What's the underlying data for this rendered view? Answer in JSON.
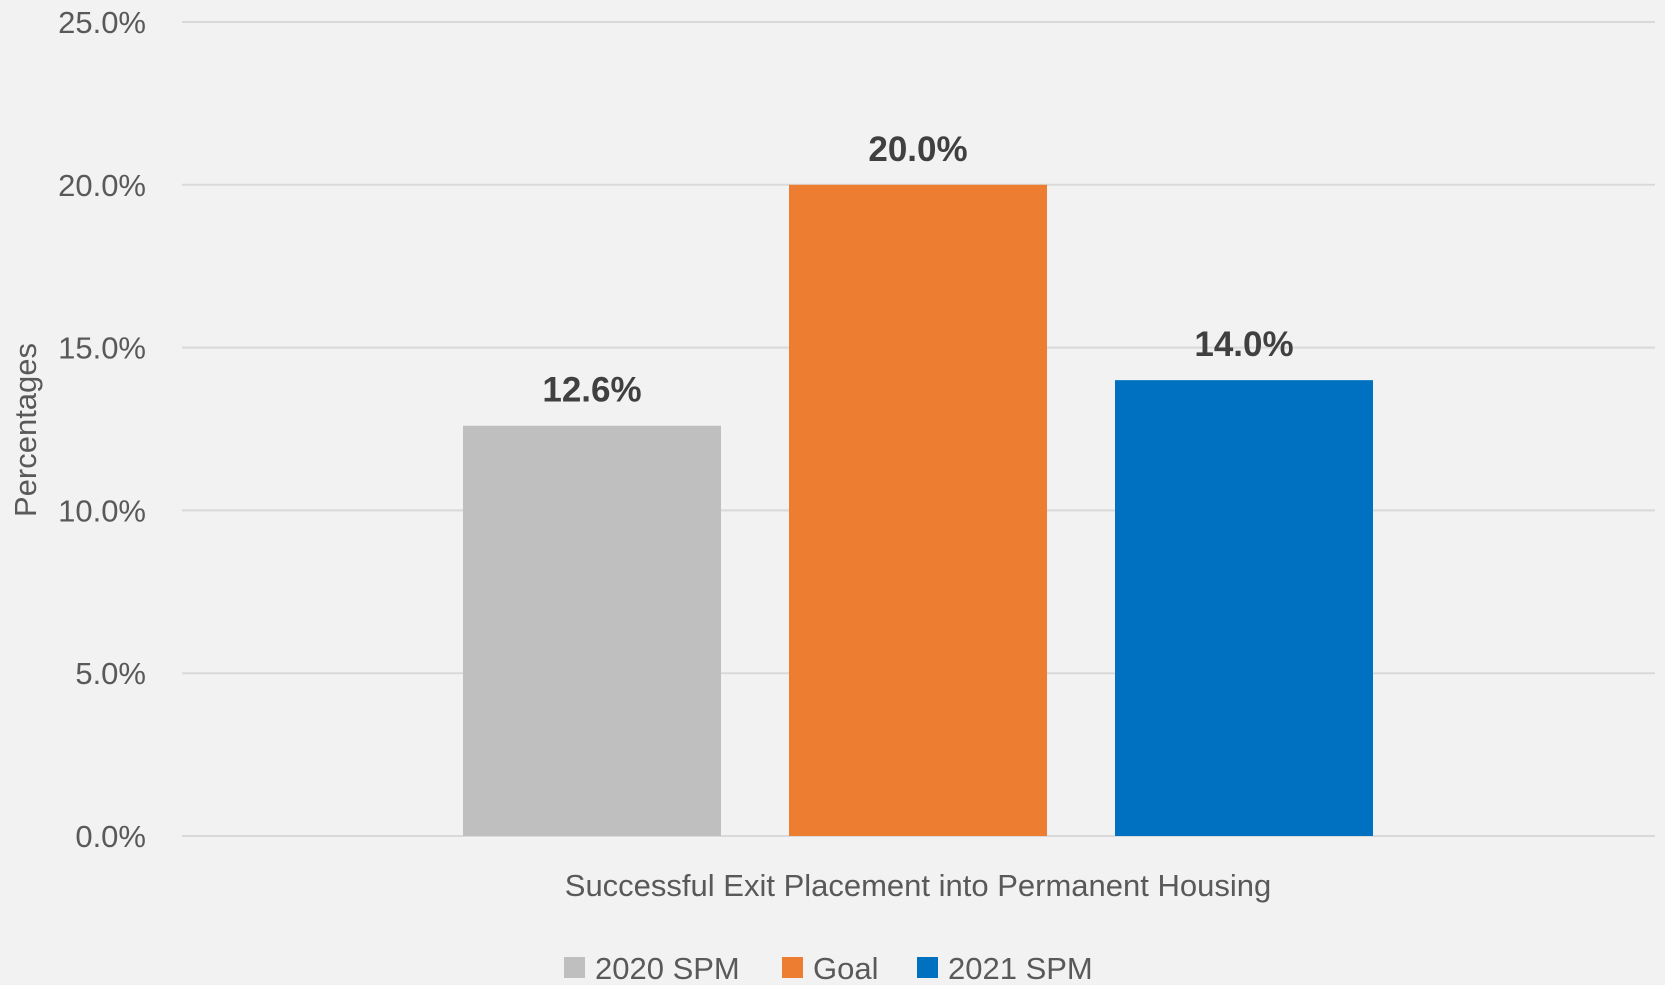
{
  "chart_data": {
    "type": "bar",
    "categories": [
      "Successful Exit Placement into Permanent Housing"
    ],
    "series": [
      {
        "name": "2020 SPM",
        "values": [
          12.6
        ],
        "color": "#bfbfbf",
        "label": "12.6%"
      },
      {
        "name": "Goal",
        "values": [
          20.0
        ],
        "color": "#ed7d31",
        "label": "20.0%"
      },
      {
        "name": "2021 SPM",
        "values": [
          14.0
        ],
        "color": "#0070c0",
        "label": "14.0%"
      }
    ],
    "title": "",
    "xlabel": "",
    "ylabel": "Percentages",
    "ylim": [
      0,
      25
    ],
    "yticks": [
      0,
      5,
      10,
      15,
      20,
      25
    ],
    "ytick_labels": [
      "0.0%",
      "5.0%",
      "10.0%",
      "15.0%",
      "20.0%",
      "25.0%"
    ],
    "grid": true,
    "legend_position": "bottom",
    "background": "#f2f2f2"
  }
}
